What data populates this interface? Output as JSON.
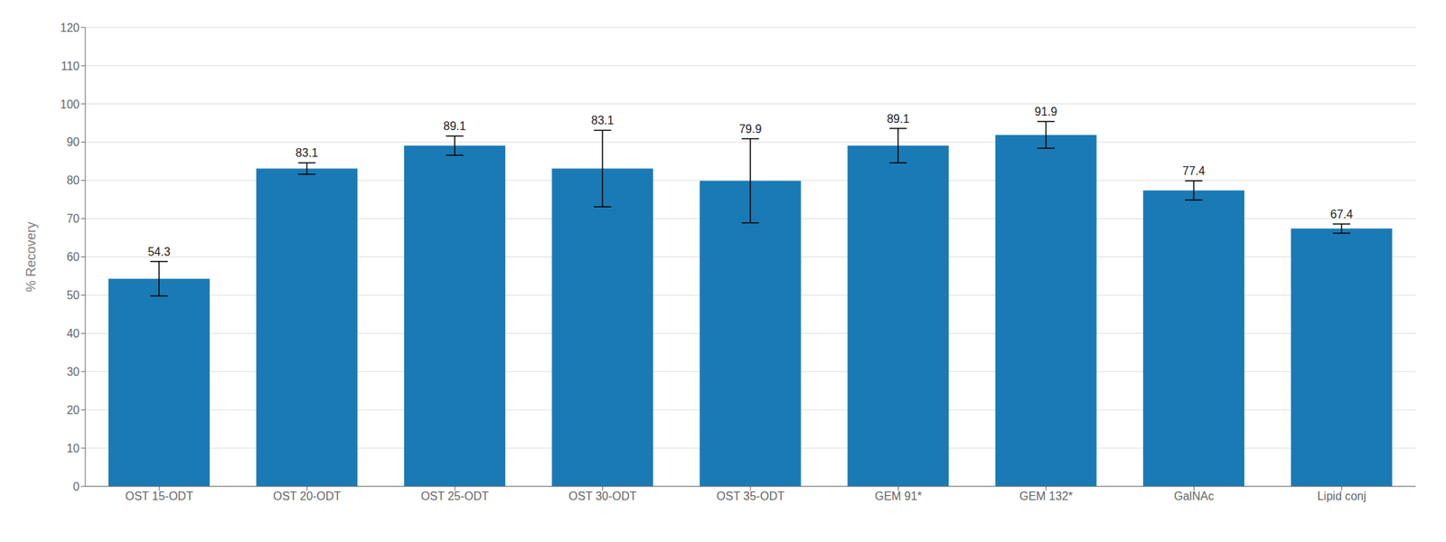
{
  "chart_data": {
    "type": "bar",
    "ylabel": "% Recovery",
    "categories": [
      "OST 15-ODT",
      "OST 20-ODT",
      "OST 25-ODT",
      "OST 30-ODT",
      "OST 35-ODT",
      "GEM 91*",
      "GEM 132*",
      "GalNAc",
      "Lipid conj"
    ],
    "values": [
      54.3,
      83.1,
      89.1,
      83.1,
      79.9,
      89.1,
      91.9,
      77.4,
      67.4
    ],
    "errors": [
      4.5,
      1.5,
      2.5,
      10.0,
      11.0,
      4.5,
      3.5,
      2.5,
      1.2
    ],
    "color": "#1a7ab5",
    "ylim": [
      0,
      120
    ],
    "yticks": [
      0,
      10,
      20,
      30,
      40,
      50,
      60,
      70,
      80,
      90,
      100,
      110,
      120
    ],
    "grid": true,
    "data_labels": true
  }
}
